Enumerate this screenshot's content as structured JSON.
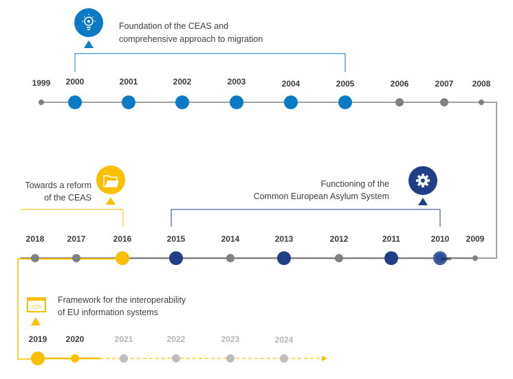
{
  "colors": {
    "blue": "#0a7ac4",
    "navy": "#213f86",
    "yellow": "#fbbf00",
    "gray": "#808080",
    "light_gray": "#bdbdbd"
  },
  "phases": [
    {
      "icon": "lightbulb-icon",
      "lines": [
        "Foundation of the CEAS and",
        "comprehensive approach to migration"
      ]
    },
    {
      "icon": "gear-icon",
      "lines": [
        "Functioning of the",
        "Common European Asylum System"
      ]
    },
    {
      "icon": "folder-icon",
      "lines": [
        "Towards a reform",
        "of the CEAS"
      ]
    },
    {
      "icon": "code-window-icon",
      "lines": [
        "Framework for the interoperability",
        "of EU information systems"
      ]
    }
  ],
  "years": [
    "1999",
    "2000",
    "2001",
    "2002",
    "2003",
    "2004",
    "2005",
    "2006",
    "2007",
    "2008",
    "2009",
    "2010",
    "2011",
    "2012",
    "2013",
    "2014",
    "2015",
    "2016",
    "2017",
    "2018",
    "2019",
    "2020",
    "2021",
    "2022",
    "2023",
    "2024"
  ],
  "logo_text": "EASO"
}
